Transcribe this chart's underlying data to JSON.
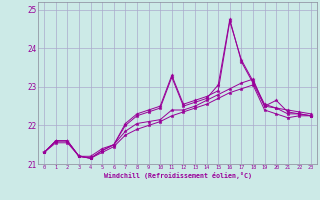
{
  "xlabel": "Windchill (Refroidissement éolien,°C)",
  "background_color": "#cceae7",
  "line_color": "#990099",
  "grid_color": "#aaaacc",
  "xlim": [
    -0.5,
    23.5
  ],
  "ylim": [
    21.0,
    25.2
  ],
  "yticks": [
    21,
    22,
    23,
    24,
    25
  ],
  "xticks": [
    0,
    1,
    2,
    3,
    4,
    5,
    6,
    7,
    8,
    9,
    10,
    11,
    12,
    13,
    14,
    15,
    16,
    17,
    18,
    19,
    20,
    21,
    22,
    23
  ],
  "series": [
    [
      21.3,
      21.6,
      21.6,
      21.2,
      21.2,
      21.4,
      21.5,
      21.85,
      22.05,
      22.1,
      22.15,
      22.4,
      22.4,
      22.5,
      22.65,
      22.8,
      22.95,
      23.1,
      23.2,
      22.5,
      22.45,
      22.3,
      22.3,
      22.25
    ],
    [
      21.3,
      21.6,
      21.6,
      21.2,
      21.15,
      21.35,
      21.5,
      22.0,
      22.25,
      22.35,
      22.45,
      23.25,
      22.5,
      22.6,
      22.7,
      23.05,
      24.75,
      23.65,
      23.1,
      22.5,
      22.65,
      22.35,
      22.3,
      22.25
    ],
    [
      21.3,
      21.6,
      21.6,
      21.2,
      21.15,
      21.35,
      21.5,
      22.05,
      22.3,
      22.4,
      22.5,
      23.3,
      22.55,
      22.65,
      22.75,
      22.9,
      24.7,
      23.7,
      23.15,
      22.55,
      22.45,
      22.4,
      22.35,
      22.3
    ],
    [
      21.3,
      21.55,
      21.55,
      21.2,
      21.15,
      21.3,
      21.45,
      21.75,
      21.9,
      22.0,
      22.1,
      22.25,
      22.35,
      22.45,
      22.55,
      22.7,
      22.85,
      22.95,
      23.05,
      22.4,
      22.3,
      22.2,
      22.25,
      22.25
    ]
  ]
}
